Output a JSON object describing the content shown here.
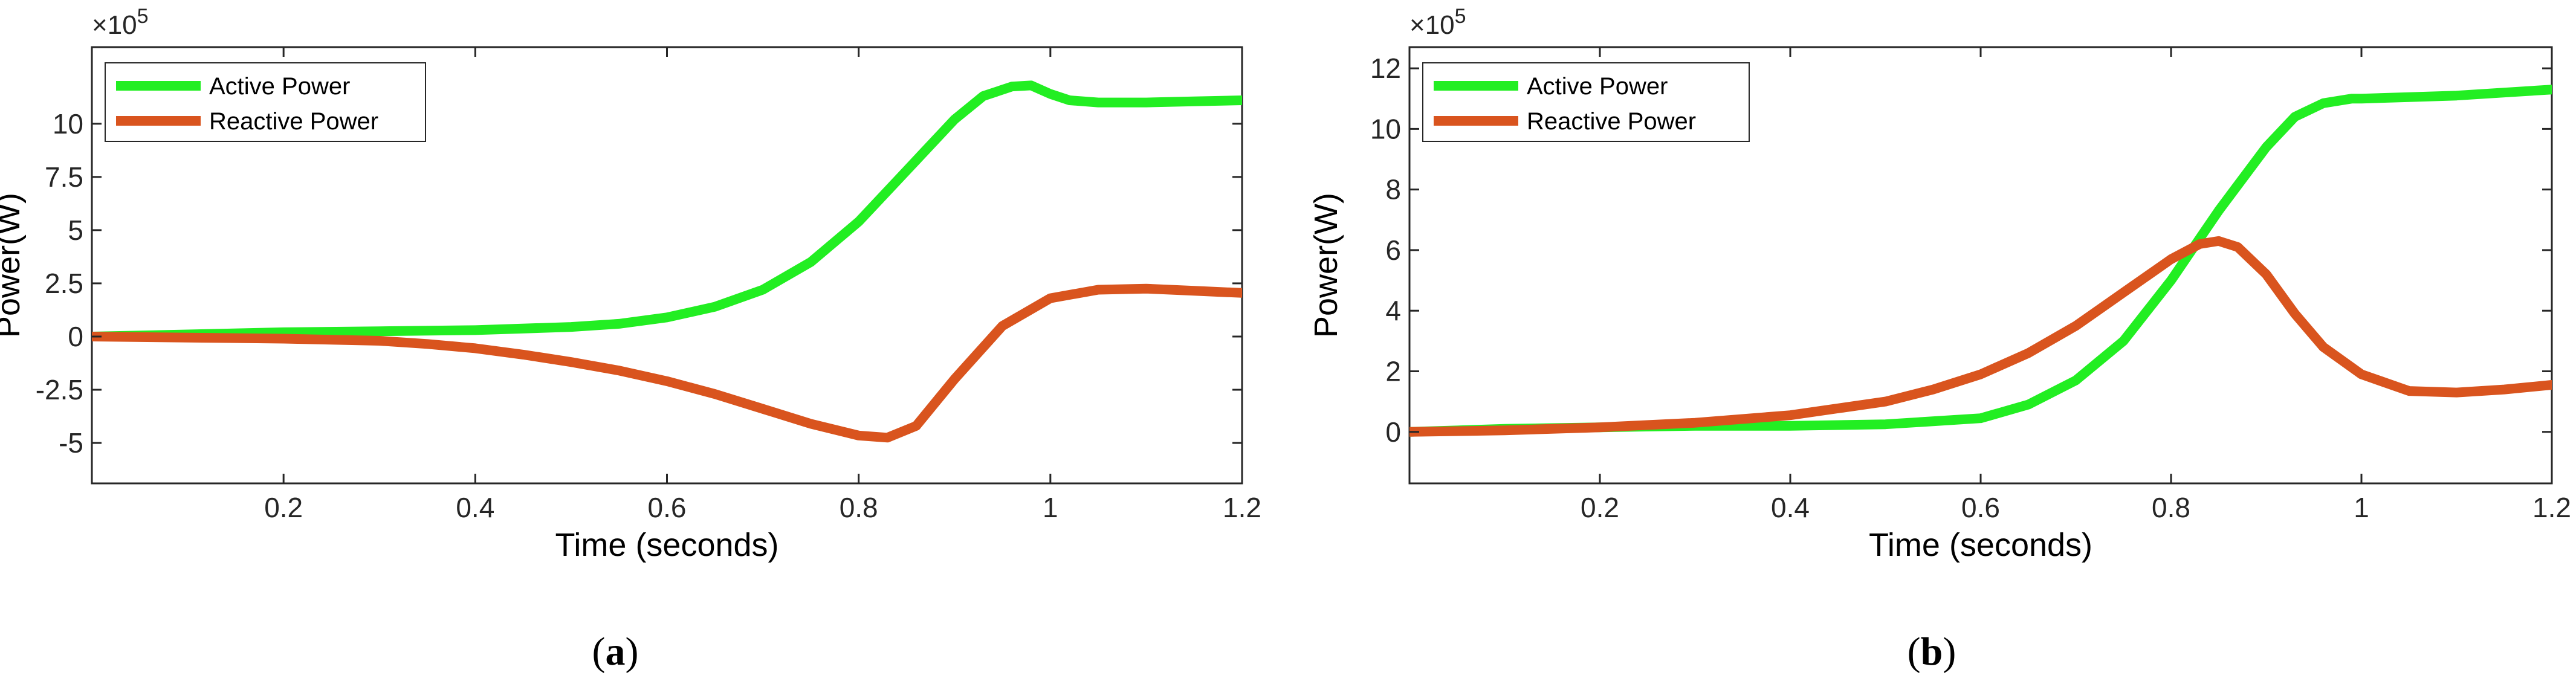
{
  "chart_data": [
    {
      "id": "a",
      "type": "line",
      "panel_label": "a",
      "xlabel": "Time (seconds)",
      "ylabel": "Power(W)",
      "y_exponent": "×10",
      "y_exponent_power": "5",
      "xlim": [
        0,
        1.2
      ],
      "ylim": [
        -6.9,
        13.6
      ],
      "xticks": [
        0.2,
        0.4,
        0.6,
        0.8,
        1,
        1.2
      ],
      "xtick_labels": [
        "0.2",
        "0.4",
        "0.6",
        "0.8",
        "1",
        "1.2"
      ],
      "yticks": [
        -5,
        -2.5,
        0,
        2.5,
        5,
        7.5,
        10
      ],
      "ytick_labels": [
        "-5",
        "-2.5",
        "0",
        "2.5",
        "5",
        "7.5",
        "10"
      ],
      "legend_position": "top-left",
      "grid": false,
      "series": [
        {
          "name": "Active Power",
          "color": "#22ee22",
          "x": [
            0,
            0.1,
            0.2,
            0.3,
            0.4,
            0.5,
            0.55,
            0.6,
            0.65,
            0.7,
            0.75,
            0.8,
            0.85,
            0.9,
            0.93,
            0.96,
            0.98,
            1.0,
            1.02,
            1.05,
            1.1,
            1.15,
            1.2
          ],
          "values": [
            0,
            0.1,
            0.2,
            0.25,
            0.3,
            0.45,
            0.6,
            0.9,
            1.4,
            2.2,
            3.5,
            5.4,
            7.8,
            10.2,
            11.3,
            11.75,
            11.8,
            11.4,
            11.1,
            11.0,
            11.0,
            11.05,
            11.1
          ]
        },
        {
          "name": "Reactive Power",
          "color": "#d9541e",
          "x": [
            0,
            0.1,
            0.2,
            0.3,
            0.35,
            0.4,
            0.45,
            0.5,
            0.55,
            0.6,
            0.65,
            0.7,
            0.75,
            0.8,
            0.83,
            0.86,
            0.9,
            0.95,
            1.0,
            1.05,
            1.1,
            1.15,
            1.2
          ],
          "values": [
            0,
            -0.05,
            -0.1,
            -0.2,
            -0.35,
            -0.55,
            -0.85,
            -1.2,
            -1.6,
            -2.1,
            -2.7,
            -3.4,
            -4.1,
            -4.65,
            -4.75,
            -4.2,
            -2.0,
            0.5,
            1.8,
            2.2,
            2.25,
            2.15,
            2.05
          ]
        }
      ]
    },
    {
      "id": "b",
      "type": "line",
      "panel_label": "b",
      "xlabel": "Time (seconds)",
      "ylabel": "Power(W)",
      "y_exponent": "×10",
      "y_exponent_power": "5",
      "xlim": [
        0,
        1.2
      ],
      "ylim": [
        -1.7,
        12.7
      ],
      "xticks": [
        0.2,
        0.4,
        0.6,
        0.8,
        1,
        1.2
      ],
      "xtick_labels": [
        "0.2",
        "0.4",
        "0.6",
        "0.8",
        "1",
        "1.2"
      ],
      "yticks": [
        0,
        2,
        4,
        6,
        8,
        10,
        12
      ],
      "ytick_labels": [
        "0",
        "2",
        "4",
        "6",
        "8",
        "10",
        "12"
      ],
      "legend_position": "top-left",
      "grid": false,
      "series": [
        {
          "name": "Active Power",
          "color": "#22ee22",
          "x": [
            0,
            0.1,
            0.2,
            0.3,
            0.4,
            0.5,
            0.6,
            0.65,
            0.7,
            0.75,
            0.8,
            0.85,
            0.9,
            0.93,
            0.96,
            0.99,
            1.0,
            1.05,
            1.1,
            1.15,
            1.2
          ],
          "values": [
            0,
            0.1,
            0.15,
            0.2,
            0.2,
            0.25,
            0.45,
            0.9,
            1.7,
            3.0,
            5.0,
            7.3,
            9.4,
            10.4,
            10.85,
            11.0,
            11.0,
            11.05,
            11.1,
            11.2,
            11.3
          ]
        },
        {
          "name": "Reactive Power",
          "color": "#d9541e",
          "x": [
            0,
            0.1,
            0.2,
            0.3,
            0.4,
            0.5,
            0.55,
            0.6,
            0.65,
            0.7,
            0.75,
            0.8,
            0.83,
            0.85,
            0.87,
            0.9,
            0.93,
            0.96,
            1.0,
            1.05,
            1.1,
            1.15,
            1.2
          ],
          "values": [
            0,
            0.05,
            0.15,
            0.3,
            0.55,
            1.0,
            1.4,
            1.9,
            2.6,
            3.5,
            4.6,
            5.7,
            6.2,
            6.3,
            6.1,
            5.2,
            3.9,
            2.8,
            1.9,
            1.35,
            1.3,
            1.4,
            1.55
          ]
        }
      ]
    }
  ]
}
